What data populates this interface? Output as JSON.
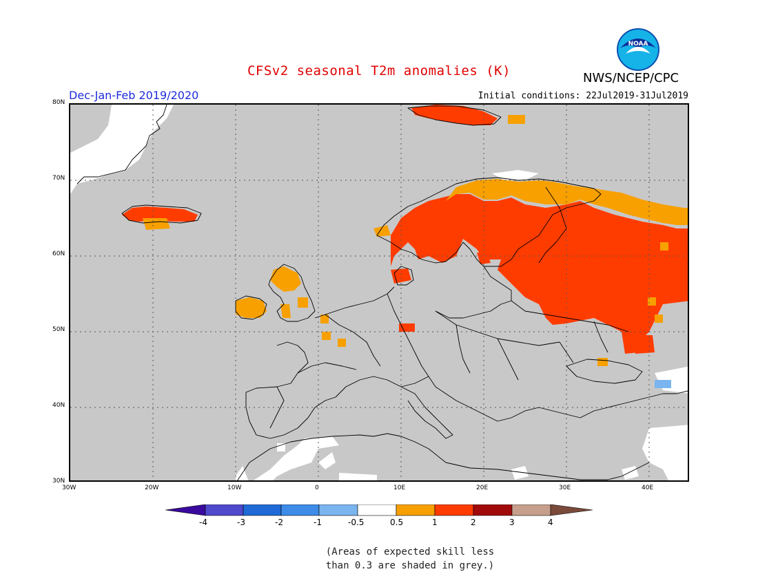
{
  "title": "CFSv2 seasonal T2m anomalies (K)",
  "agency": "NWS/NCEP/CPC",
  "logo_text": "NOAA",
  "season": "Dec-Jan-Feb 2019/2020",
  "initial_conditions": "Initial conditions: 22Jul2019-31Jul2019",
  "footnote": [
    "(Areas of expected skill less",
    "than 0.3 are shaded in grey.)"
  ],
  "map": {
    "lon_range": [
      -30,
      45
    ],
    "lat_range": [
      30,
      80
    ],
    "lat_ticks": [
      "30N",
      "40N",
      "50N",
      "60N",
      "70N",
      "80N"
    ],
    "lon_ticks": [
      "30W",
      "20W",
      "10W",
      "0",
      "10E",
      "20E",
      "30E",
      "40E"
    ],
    "regions": [
      {
        "label": "Scandinavia / Finland / W Russia",
        "category": "1 to 2"
      },
      {
        "label": "Northern Norway / Kola",
        "category": "0.5 to 1"
      },
      {
        "label": "Svalbard",
        "category": "1 to 2"
      },
      {
        "label": "Iceland",
        "category": "1 to 2"
      },
      {
        "label": "British Isles",
        "category": "0.5 to 1"
      },
      {
        "label": "Caucasus",
        "category": "-1 to -0.5"
      }
    ]
  },
  "colorbar": {
    "labels": [
      "-4",
      "-3",
      "-2",
      "-1",
      "-0.5",
      "0.5",
      "1",
      "2",
      "3",
      "4"
    ],
    "colors": [
      "#3a0a9e",
      "#4f49cc",
      "#1f6ad6",
      "#3d8ce8",
      "#7ab5ef",
      "#ffffff",
      "#f7a000",
      "#ff3c00",
      "#a10a0a",
      "#c6a08c",
      "#7a4a3a"
    ],
    "grey": "#c8c8c8"
  }
}
